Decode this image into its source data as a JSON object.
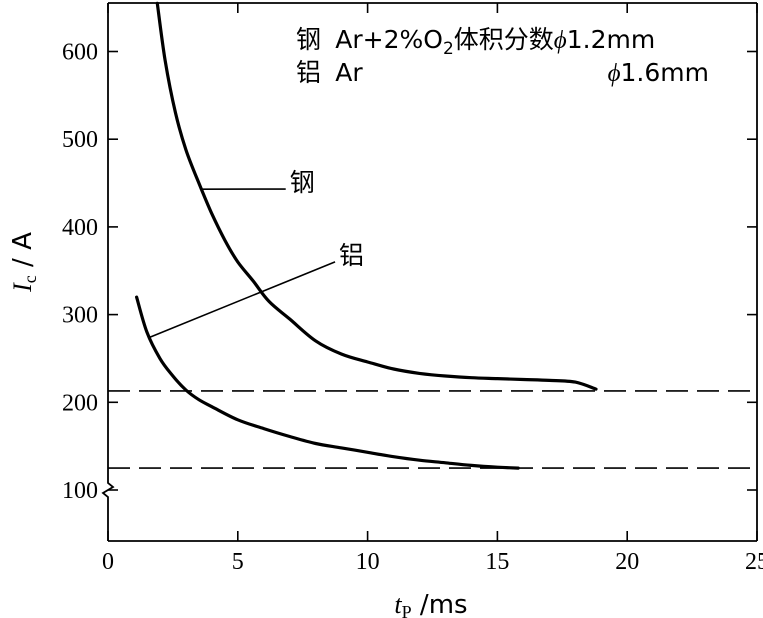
{
  "chart_data": {
    "type": "line",
    "xlabel": {
      "symbol": "t",
      "subscript": "P",
      "unit": " /ms"
    },
    "ylabel": {
      "symbol": "I",
      "subscript": "c",
      "unit": " / A"
    },
    "xlim": [
      0,
      25
    ],
    "ylim": [
      100,
      650
    ],
    "y_axis_break": true,
    "x_ticks": [
      0,
      5,
      10,
      15,
      20,
      25
    ],
    "x_tick_labels": [
      "0",
      "5",
      "10",
      "15",
      "20",
      "25"
    ],
    "y_ticks": [
      100,
      200,
      300,
      400,
      500,
      600
    ],
    "y_tick_labels": [
      "100",
      "200",
      "300",
      "400",
      "500",
      "600"
    ],
    "grid": false,
    "legend": {
      "placement": "top-right",
      "rows": [
        {
          "material": "钢",
          "gas": "Ar+2%O",
          "gas_sub": "2",
          "note": "体积分数",
          "phi": "ϕ",
          "diameter": "1.2mm"
        },
        {
          "material": "铝",
          "gas": "Ar",
          "gas_sub": "",
          "note": "",
          "phi": "ϕ",
          "diameter": "1.6mm"
        }
      ]
    },
    "series": [
      {
        "name": "钢",
        "x": [
          1.9,
          2.2,
          2.6,
          3.0,
          3.5,
          4.0,
          4.5,
          5.0,
          5.6,
          6.2,
          7.0,
          8.0,
          9.0,
          10.0,
          11.0,
          12.0,
          13.0,
          14.0,
          15.0,
          16.0,
          17.0,
          18.0,
          18.8
        ],
        "y": [
          655,
          590,
          530,
          488,
          450,
          415,
          385,
          360,
          338,
          315,
          295,
          270,
          255,
          246,
          238,
          233,
          230,
          228,
          227,
          226,
          225,
          223,
          215
        ]
      },
      {
        "name": "铝",
        "x": [
          1.1,
          1.5,
          2.0,
          2.5,
          3.0,
          3.5,
          4.0,
          5.0,
          6.0,
          7.0,
          8.0,
          9.0,
          10.0,
          11.0,
          12.0,
          13.0,
          14.0,
          15.0,
          15.8
        ],
        "y": [
          320,
          280,
          250,
          230,
          214,
          203,
          195,
          180,
          170,
          161,
          153,
          148,
          143,
          138,
          134,
          131,
          128,
          126,
          125
        ]
      }
    ],
    "reference_lines": [
      {
        "axis": "y",
        "value": 213,
        "style": "dashed"
      },
      {
        "axis": "y",
        "value": 125,
        "style": "dashed"
      }
    ],
    "annotations": [
      {
        "text": "钢",
        "series": "钢",
        "at_x": 3.6,
        "label_x": 7.0,
        "label_y": 450
      },
      {
        "text": "铝",
        "series": "铝",
        "at_x": 1.6,
        "label_x": 8.9,
        "label_y": 367
      }
    ]
  }
}
